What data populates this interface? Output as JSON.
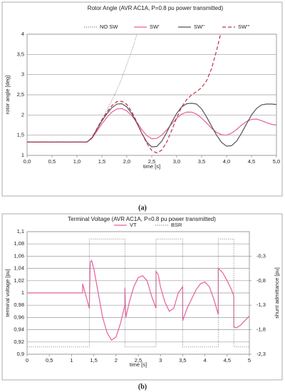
{
  "chart_data": [
    {
      "type": "line",
      "caption": "(a)",
      "title": "Rotor Angle (AVR AC1A, P=0.8 pu power transmitted)",
      "x_label": "time [s]",
      "y_label": "rotor angle [deg]",
      "x": [
        0,
        0.1,
        0.2,
        0.3,
        0.4,
        0.5,
        0.6,
        0.7,
        0.8,
        0.9,
        1.0,
        1.1,
        1.2,
        1.3,
        1.4,
        1.5,
        1.6,
        1.7,
        1.8,
        1.9,
        2.0,
        2.1,
        2.2,
        2.3,
        2.4,
        2.5,
        2.6,
        2.7,
        2.8,
        2.9,
        3.0,
        3.1,
        3.2,
        3.3,
        3.4,
        3.5,
        3.6,
        3.7,
        3.8,
        3.9,
        4.0,
        4.1,
        4.2,
        4.3,
        4.4,
        4.5,
        4.6,
        4.7,
        4.8,
        4.9,
        5.0
      ],
      "xlim": [
        0,
        5
      ],
      "xticks": [
        {
          "value": 0,
          "label": "0,0"
        },
        {
          "value": 0.5,
          "label": "0,5"
        },
        {
          "value": 1,
          "label": "1,0"
        },
        {
          "value": 1.5,
          "label": "1,5"
        },
        {
          "value": 2,
          "label": "2,0"
        },
        {
          "value": 2.5,
          "label": "2,5"
        },
        {
          "value": 3,
          "label": "3,0"
        },
        {
          "value": 3.5,
          "label": "3,5"
        },
        {
          "value": 4,
          "label": "4,0"
        },
        {
          "value": 4.5,
          "label": "4,5"
        },
        {
          "value": 5,
          "label": "5,0"
        }
      ],
      "ylim": [
        1,
        4
      ],
      "yticks": [
        1,
        {
          "value": 1.5,
          "label": "1,5"
        },
        2,
        {
          "value": 2.5,
          "label": "2,5"
        },
        3,
        {
          "value": 3.5,
          "label": "3,5"
        },
        4
      ],
      "grid": true,
      "series": [
        {
          "name": "NO SW",
          "color": "#8a8a8a",
          "dash": "dotted",
          "values": [
            1.33,
            1.33,
            1.33,
            1.33,
            1.33,
            1.33,
            1.33,
            1.33,
            1.33,
            1.33,
            1.33,
            1.33,
            1.33,
            1.44,
            1.66,
            1.9,
            2.12,
            2.36,
            2.62,
            2.92,
            3.25,
            3.6,
            3.98,
            4.4,
            null,
            null,
            null,
            null,
            null,
            null,
            null,
            null,
            null,
            null,
            null,
            null,
            null,
            null,
            null,
            null,
            null,
            null,
            null,
            null,
            null,
            null,
            null,
            null,
            null,
            null,
            null
          ]
        },
        {
          "name": "SW'",
          "color": "#e5609e",
          "dash": "solid",
          "values": [
            1.33,
            1.33,
            1.33,
            1.33,
            1.33,
            1.33,
            1.33,
            1.33,
            1.33,
            1.33,
            1.33,
            1.33,
            1.33,
            1.42,
            1.6,
            1.78,
            1.94,
            2.07,
            2.15,
            2.16,
            2.1,
            1.98,
            1.82,
            1.64,
            1.49,
            1.41,
            1.42,
            1.5,
            1.63,
            1.78,
            1.92,
            2.02,
            2.07,
            2.07,
            2.02,
            1.92,
            1.8,
            1.67,
            1.57,
            1.51,
            1.5,
            1.55,
            1.64,
            1.75,
            1.84,
            1.89,
            1.9,
            1.86,
            1.81,
            1.77,
            1.75
          ]
        },
        {
          "name": "SW''",
          "color": "#555555",
          "dash": "solid",
          "values": [
            1.33,
            1.33,
            1.33,
            1.33,
            1.33,
            1.33,
            1.33,
            1.33,
            1.33,
            1.33,
            1.33,
            1.33,
            1.33,
            1.43,
            1.64,
            1.85,
            2.03,
            2.18,
            2.27,
            2.28,
            2.2,
            2.03,
            1.8,
            1.55,
            1.33,
            1.21,
            1.22,
            1.35,
            1.57,
            1.82,
            2.04,
            2.2,
            2.28,
            2.29,
            2.27,
            2.15,
            1.95,
            1.72,
            1.5,
            1.32,
            1.23,
            1.24,
            1.35,
            1.55,
            1.78,
            2.0,
            2.16,
            2.25,
            2.27,
            2.27,
            2.26
          ]
        },
        {
          "name": "SW'''",
          "color": "#c0304a",
          "dash": "dashed",
          "values": [
            1.33,
            1.33,
            1.33,
            1.33,
            1.33,
            1.33,
            1.33,
            1.33,
            1.33,
            1.33,
            1.33,
            1.33,
            1.33,
            1.44,
            1.66,
            1.88,
            2.07,
            2.23,
            2.33,
            2.34,
            2.26,
            2.08,
            1.83,
            1.55,
            1.3,
            1.12,
            1.06,
            1.13,
            1.33,
            1.62,
            1.93,
            2.2,
            2.38,
            2.5,
            2.58,
            2.68,
            2.85,
            3.15,
            3.6,
            4.1,
            null,
            null,
            null,
            null,
            null,
            null,
            null,
            null,
            null,
            null,
            null
          ]
        }
      ]
    },
    {
      "type": "line",
      "caption": "(b)",
      "title": "Terminal Voltage (AVR AC1A, P=0.8 pu power transmitted)",
      "x_label": "time [s]",
      "y_label": "terminal voltage [pu]",
      "y2_label": "shunt admittance [pu]",
      "xlim": [
        0,
        5
      ],
      "xticks": [
        0,
        {
          "value": 0.5,
          "label": "0,5"
        },
        1,
        {
          "value": 1.5,
          "label": "1,5"
        },
        2,
        {
          "value": 2.5,
          "label": "2,5"
        },
        3,
        {
          "value": 3.5,
          "label": "3,5"
        },
        4,
        {
          "value": 4.5,
          "label": "4,5"
        },
        5
      ],
      "ylim": [
        0.9,
        1.1
      ],
      "yticks": [
        {
          "value": 0.9,
          "label": "0,9"
        },
        {
          "value": 0.92,
          "label": "0,92"
        },
        {
          "value": 0.94,
          "label": "0,94"
        },
        {
          "value": 0.96,
          "label": "0,96"
        },
        {
          "value": 0.98,
          "label": "0,98"
        },
        1,
        {
          "value": 1.02,
          "label": "1,02"
        },
        {
          "value": 1.04,
          "label": "1,04"
        },
        {
          "value": 1.06,
          "label": "1,06"
        },
        {
          "value": 1.08,
          "label": "1,08"
        },
        {
          "value": 1.1,
          "label": "1,1"
        }
      ],
      "y2lim": [
        -2.3,
        0.2
      ],
      "y2ticks": [
        {
          "value": -0.3,
          "label": "-0,3"
        },
        {
          "value": -0.8,
          "label": "-0,8"
        },
        {
          "value": -1.3,
          "label": "-1,3"
        },
        {
          "value": -1.8,
          "label": "-1,8"
        },
        {
          "value": -2.3,
          "label": "-2,3"
        }
      ],
      "grid": true,
      "series": [
        {
          "name": "VT",
          "color": "#e5609e",
          "dash": "solid",
          "x": [
            0,
            1.25,
            1.25,
            1.4,
            1.42,
            1.45,
            1.5,
            1.6,
            1.7,
            1.8,
            1.9,
            2.0,
            2.1,
            2.2,
            2.2,
            2.22,
            2.3,
            2.4,
            2.5,
            2.6,
            2.7,
            2.8,
            2.9,
            2.9,
            2.95,
            3.0,
            3.1,
            3.2,
            3.3,
            3.4,
            3.5,
            3.5,
            3.6,
            3.7,
            3.8,
            3.9,
            4.0,
            4.1,
            4.2,
            4.3,
            4.3,
            4.4,
            4.5,
            4.6,
            4.65,
            4.65,
            4.7,
            4.8,
            4.9,
            5.0
          ],
          "values": [
            1.0,
            1.0,
            1.015,
            0.975,
            1.05,
            1.053,
            1.04,
            1.0,
            0.96,
            0.935,
            0.923,
            0.928,
            0.95,
            0.98,
            1.008,
            0.96,
            0.985,
            1.01,
            1.025,
            1.028,
            1.02,
            0.995,
            0.975,
            1.035,
            1.03,
            1.01,
            0.985,
            0.97,
            0.975,
            1.0,
            1.01,
            0.955,
            0.975,
            0.99,
            1.005,
            1.015,
            1.018,
            1.01,
            0.99,
            0.965,
            1.04,
            1.033,
            1.02,
            1.005,
            0.995,
            0.945,
            0.943,
            0.947,
            0.955,
            0.962
          ]
        },
        {
          "name": "BSR",
          "color": "#8a8a8a",
          "dash": "dotted",
          "axis": "y2",
          "x": [
            0,
            1.4,
            1.4,
            2.2,
            2.2,
            2.9,
            2.9,
            3.5,
            3.5,
            4.3,
            4.3,
            4.65,
            4.65,
            5.0
          ],
          "values": [
            -2.15,
            -2.15,
            0.05,
            0.05,
            -2.15,
            -2.15,
            0.05,
            0.05,
            -2.15,
            -2.15,
            0.05,
            0.05,
            -2.15,
            -2.15
          ]
        }
      ]
    }
  ]
}
